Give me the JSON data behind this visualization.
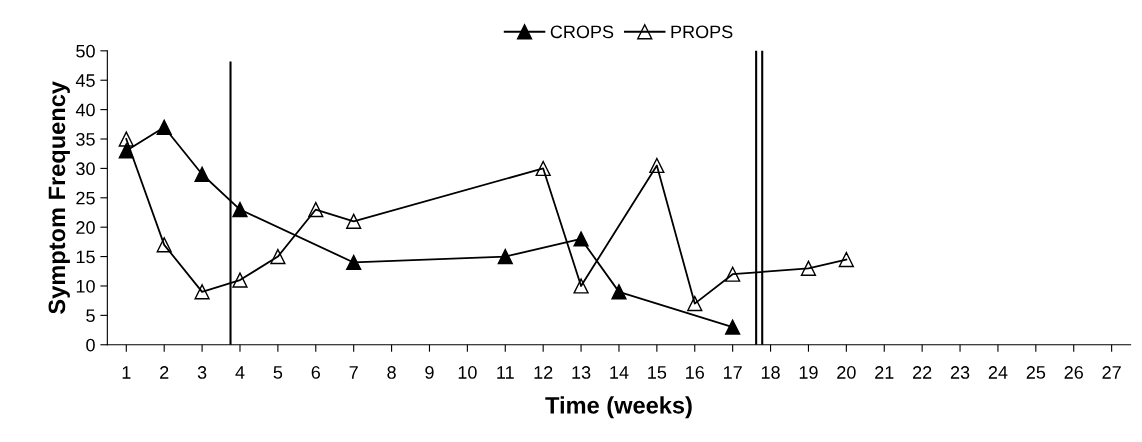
{
  "chart_data": {
    "type": "line",
    "xlabel": "Time (weeks)",
    "ylabel": "Symptom Frequency",
    "series": [
      {
        "name": "CROPS",
        "color": "#000000",
        "x": [
          1,
          2,
          3,
          4,
          7,
          11,
          13,
          14,
          17
        ],
        "values": [
          33,
          37,
          29,
          23,
          14,
          15,
          18,
          9,
          3
        ]
      },
      {
        "name": "PROPS",
        "color": "#000000",
        "x": [
          1,
          2,
          3,
          4,
          5,
          6,
          7,
          12,
          13,
          15,
          16,
          17,
          19,
          20
        ],
        "values": [
          35,
          17,
          9,
          11,
          15,
          23,
          21,
          30,
          10,
          30.5,
          7,
          12,
          13,
          14.5
        ]
      }
    ],
    "xlim": [
      0.5,
      27.5
    ],
    "xticks": [
      1,
      2,
      3,
      4,
      5,
      6,
      7,
      8,
      9,
      10,
      11,
      12,
      13,
      14,
      15,
      16,
      17,
      18,
      19,
      20,
      21,
      22,
      23,
      24,
      25,
      26,
      27
    ],
    "ylim": [
      0,
      50
    ],
    "yticks": [
      0,
      5,
      10,
      15,
      20,
      25,
      30,
      35,
      40,
      45,
      50
    ],
    "ref_lines": [
      {
        "axis": "x",
        "value": 3.75,
        "color": "#000000",
        "line_style": "solid"
      },
      {
        "axis": "x",
        "value": 17.62,
        "color": "#000000",
        "line_style": "solid"
      },
      {
        "axis": "x",
        "value": 17.78,
        "color": "#000000",
        "line_style": "solid"
      }
    ],
    "legend": "top",
    "marker": "triangle",
    "line_style": "solid"
  }
}
